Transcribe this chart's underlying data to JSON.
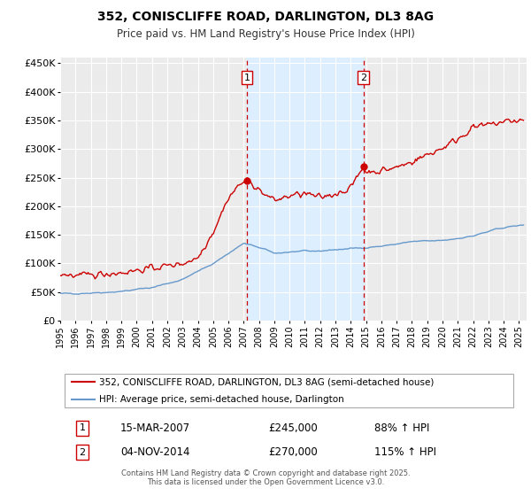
{
  "title": "352, CONISCLIFFE ROAD, DARLINGTON, DL3 8AG",
  "subtitle": "Price paid vs. HM Land Registry's House Price Index (HPI)",
  "footer": "Contains HM Land Registry data © Crown copyright and database right 2025.\nThis data is licensed under the Open Government Licence v3.0.",
  "legend_line1": "352, CONISCLIFFE ROAD, DARLINGTON, DL3 8AG (semi-detached house)",
  "legend_line2": "HPI: Average price, semi-detached house, Darlington",
  "annotation1_label": "1",
  "annotation1_date": "15-MAR-2007",
  "annotation1_price": "£245,000",
  "annotation1_hpi": "88% ↑ HPI",
  "annotation2_label": "2",
  "annotation2_date": "04-NOV-2014",
  "annotation2_price": "£270,000",
  "annotation2_hpi": "115% ↑ HPI",
  "vline1_x": 2007.21,
  "vline2_x": 2014.84,
  "marker1_x": 2007.21,
  "marker1_y": 245000,
  "marker2_x": 2014.84,
  "marker2_y": 270000,
  "xlim": [
    1995,
    2025.5
  ],
  "ylim": [
    0,
    460000
  ],
  "yticks": [
    0,
    50000,
    100000,
    150000,
    200000,
    250000,
    300000,
    350000,
    400000,
    450000
  ],
  "background_color": "#ffffff",
  "plot_bg_color": "#ebebeb",
  "grid_color": "#ffffff",
  "red_color": "#cc0000",
  "blue_color": "#6699cc",
  "shade_color": "#ddeeff",
  "vline_color": "#cc0000"
}
